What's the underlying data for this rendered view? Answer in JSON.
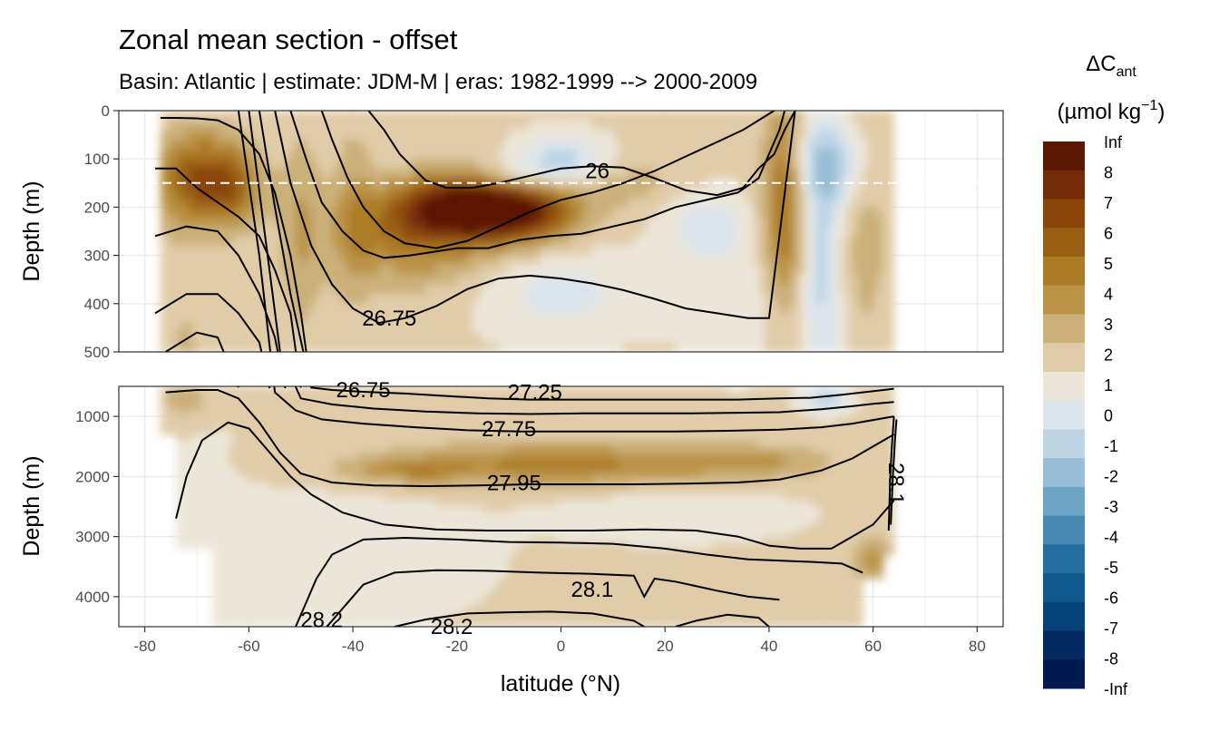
{
  "chart_data": {
    "type": "heatmap",
    "title": "Zonal mean section - offset",
    "subtitle": "Basin: Atlantic | estimate: JDM-M | eras: 1982-1999 --> 2000-2009",
    "xlabel": "latitude (°N)",
    "ylabel": "Depth (m)",
    "xlim": [
      -85,
      85
    ],
    "x_ticks": [
      -80,
      -60,
      -40,
      -20,
      0,
      20,
      40,
      60,
      80
    ],
    "data_lat_range": [
      -77,
      64
    ],
    "panels": [
      {
        "name": "upper",
        "ylim": [
          0,
          500
        ],
        "y_ticks": [
          0,
          100,
          200,
          300,
          400,
          500
        ]
      },
      {
        "name": "lower",
        "ylim": [
          500,
          4500
        ],
        "y_ticks": [
          1000,
          2000,
          3000,
          4000
        ]
      }
    ],
    "mixed_layer_line_depth": 150,
    "legend": {
      "title_main": "ΔC",
      "title_sub": "ant",
      "unit_main": "(µmol kg",
      "unit_sup": "−1",
      "unit_close": ")",
      "labels": [
        "Inf",
        "8",
        "7",
        "6",
        "5",
        "4",
        "3",
        "2",
        "1",
        "0",
        "-1",
        "-2",
        "-3",
        "-4",
        "-5",
        "-6",
        "-7",
        "-8",
        "-Inf"
      ],
      "colors": [
        "#5c1700",
        "#742b08",
        "#8a4508",
        "#9a5e12",
        "#ac7b25",
        "#bb9448",
        "#ccb07a",
        "#e0cca8",
        "#ece6d9",
        "#dde6ec",
        "#bcd4e4",
        "#97bed6",
        "#6ea4c6",
        "#4889b4",
        "#256ea1",
        "#105890",
        "#06427a",
        "#032b62",
        "#001a4f"
      ]
    },
    "contour_labels": [
      {
        "text": "26",
        "lat": 7,
        "depth": 125
      },
      {
        "text": "26.75",
        "lat": -33,
        "depth": 430
      },
      {
        "text": "26.75",
        "lat": -38,
        "depth": 560
      },
      {
        "text": "27.25",
        "lat": -5,
        "depth": 600
      },
      {
        "text": "27.75",
        "lat": -10,
        "depth": 1210
      },
      {
        "text": "27.95",
        "lat": -9,
        "depth": 2110
      },
      {
        "text": "28.1",
        "lat": 6,
        "depth": 3880
      },
      {
        "text": "28.2",
        "lat": -46,
        "depth": 4390
      },
      {
        "text": "28.2",
        "lat": -21,
        "depth": 4500
      },
      {
        "text": "28.1",
        "lat": 63,
        "depth": 2000
      }
    ]
  }
}
